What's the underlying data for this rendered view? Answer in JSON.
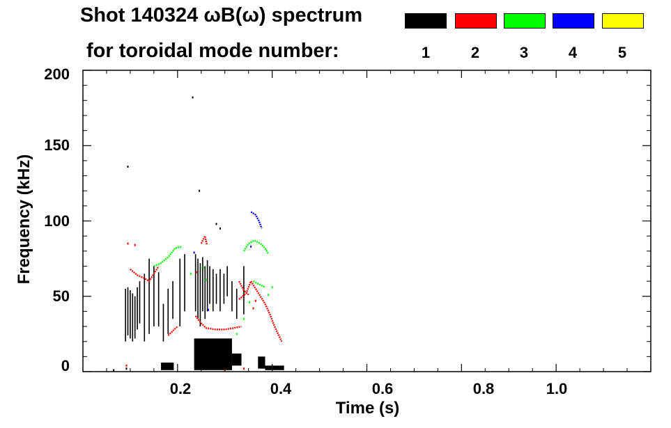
{
  "title": {
    "line1": "Shot 140324 ωB(ω) spectrum",
    "line2": "for toroidal mode number:"
  },
  "legend": [
    {
      "mode": "1",
      "color": "#000000"
    },
    {
      "mode": "2",
      "color": "#ff0000"
    },
    {
      "mode": "3",
      "color": "#00ff00"
    },
    {
      "mode": "4",
      "color": "#0000ff"
    },
    {
      "mode": "5",
      "color": "#ffff00"
    }
  ],
  "chart_data": {
    "type": "scatter",
    "title": "Shot 140324 ωB(ω) spectrum for toroidal mode number: 1 2 3 4 5",
    "xlabel": "Time (s)",
    "ylabel": "Frequency (kHz)",
    "xlim": [
      0.0,
      1.2
    ],
    "ylim": [
      0,
      200
    ],
    "x_ticks": [
      {
        "value": 0.2,
        "label": "0.2"
      },
      {
        "value": 0.4,
        "label": "0.4"
      },
      {
        "value": 0.6,
        "label": "0.6"
      },
      {
        "value": 0.8,
        "label": "0.8"
      },
      {
        "value": 1.0,
        "label": "1.0"
      }
    ],
    "y_ticks": [
      {
        "value": 0,
        "label": "0"
      },
      {
        "value": 50,
        "label": "50"
      },
      {
        "value": 100,
        "label": "100"
      },
      {
        "value": 150,
        "label": "150"
      },
      {
        "value": 200,
        "label": "200"
      }
    ],
    "series": [
      {
        "name": "n=1",
        "color": "#000000",
        "segments": [
          {
            "t": 0.09,
            "f": [
              20,
              55
            ]
          },
          {
            "t": 0.095,
            "f": [
              24,
              56
            ]
          },
          {
            "t": 0.1,
            "f": [
              22,
              54
            ]
          },
          {
            "t": 0.105,
            "f": [
              20,
              52
            ]
          },
          {
            "t": 0.11,
            "f": [
              22,
              50
            ]
          },
          {
            "t": 0.115,
            "f": [
              28,
              56
            ]
          },
          {
            "t": 0.12,
            "f": [
              32,
              60
            ]
          },
          {
            "t": 0.13,
            "f": [
              20,
              65
            ]
          },
          {
            "t": 0.14,
            "f": [
              25,
              75
            ]
          },
          {
            "t": 0.15,
            "f": [
              30,
              70
            ]
          },
          {
            "t": 0.16,
            "f": [
              30,
              66
            ]
          },
          {
            "t": 0.17,
            "f": [
              20,
              45
            ]
          },
          {
            "t": 0.18,
            "f": [
              25,
              55
            ]
          },
          {
            "t": 0.19,
            "f": [
              35,
              60
            ]
          },
          {
            "t": 0.205,
            "f": [
              30,
              75
            ]
          },
          {
            "t": 0.215,
            "f": [
              40,
              78
            ]
          },
          {
            "t": 0.238,
            "f": [
              40,
              78
            ]
          },
          {
            "t": 0.243,
            "f": [
              35,
              75
            ]
          },
          {
            "t": 0.248,
            "f": [
              30,
              72
            ]
          },
          {
            "t": 0.253,
            "f": [
              40,
              76
            ]
          },
          {
            "t": 0.258,
            "f": [
              35,
              70
            ]
          },
          {
            "t": 0.263,
            "f": [
              40,
              74
            ]
          },
          {
            "t": 0.268,
            "f": [
              45,
              70
            ]
          },
          {
            "t": 0.275,
            "f": [
              40,
              68
            ]
          },
          {
            "t": 0.282,
            "f": [
              45,
              65
            ]
          },
          {
            "t": 0.29,
            "f": [
              40,
              68
            ]
          },
          {
            "t": 0.298,
            "f": [
              45,
              65
            ]
          },
          {
            "t": 0.305,
            "f": [
              50,
              70
            ]
          },
          {
            "t": 0.315,
            "f": [
              40,
              60
            ]
          },
          {
            "t": 0.325,
            "f": [
              35,
              55
            ]
          },
          {
            "t": 0.34,
            "f": [
              38,
              70
            ]
          }
        ],
        "points": [
          {
            "t": 0.095,
            "f": 136
          },
          {
            "t": 0.232,
            "f": 182
          },
          {
            "t": 0.246,
            "f": 120
          },
          {
            "t": 0.065,
            "f": 1
          },
          {
            "t": 0.092,
            "f": 2
          },
          {
            "t": 0.282,
            "f": 98
          },
          {
            "t": 0.29,
            "f": 95
          }
        ],
        "blobs": [
          {
            "t0": 0.165,
            "t1": 0.192,
            "f0": 1,
            "f1": 6
          },
          {
            "t0": 0.235,
            "t1": 0.315,
            "f0": 1,
            "f1": 22
          },
          {
            "t0": 0.315,
            "t1": 0.335,
            "f0": 4,
            "f1": 12
          },
          {
            "t0": 0.37,
            "t1": 0.385,
            "f0": 2,
            "f1": 10
          },
          {
            "t0": 0.385,
            "t1": 0.425,
            "f0": 1,
            "f1": 4
          }
        ]
      },
      {
        "name": "n=2",
        "color": "#ff0000",
        "tracks": [
          {
            "points": [
              [
                0.1,
                68
              ],
              [
                0.115,
                64
              ],
              [
                0.13,
                62
              ],
              [
                0.14,
                60
              ],
              [
                0.15,
                65
              ],
              [
                0.16,
                70
              ]
            ]
          },
          {
            "points": [
              [
                0.18,
                24
              ],
              [
                0.19,
                27
              ],
              [
                0.2,
                30
              ]
            ]
          },
          {
            "points": [
              [
                0.238,
                37
              ],
              [
                0.25,
                32
              ],
              [
                0.26,
                29
              ],
              [
                0.28,
                28
              ],
              [
                0.3,
                28
              ],
              [
                0.32,
                29
              ],
              [
                0.335,
                30
              ]
            ]
          },
          {
            "points": [
              [
                0.33,
                48
              ],
              [
                0.345,
                52
              ],
              [
                0.355,
                60
              ],
              [
                0.365,
                55
              ],
              [
                0.375,
                50
              ],
              [
                0.385,
                45
              ],
              [
                0.395,
                38
              ],
              [
                0.405,
                30
              ],
              [
                0.42,
                20
              ]
            ]
          },
          {
            "points": [
              [
                0.25,
                85
              ],
              [
                0.258,
                90
              ],
              [
                0.262,
                84
              ]
            ]
          },
          {
            "points": [
              [
                0.33,
                60
              ],
              [
                0.34,
                54
              ],
              [
                0.35,
                51
              ]
            ]
          }
        ],
        "points": [
          {
            "t": 0.092,
            "f": 4
          },
          {
            "t": 0.095,
            "f": 85
          },
          {
            "t": 0.11,
            "f": 84
          },
          {
            "t": 0.24,
            "f": 66
          },
          {
            "t": 0.36,
            "f": 42
          },
          {
            "t": 0.365,
            "f": 47
          },
          {
            "t": 0.3,
            "f": 1
          },
          {
            "t": 0.34,
            "f": 2
          }
        ]
      },
      {
        "name": "n=3",
        "color": "#00ff00",
        "tracks": [
          {
            "points": [
              [
                0.15,
                70
              ],
              [
                0.165,
                72
              ],
              [
                0.18,
                76
              ],
              [
                0.195,
                82
              ],
              [
                0.21,
                83
              ]
            ]
          },
          {
            "points": [
              [
                0.34,
                80
              ],
              [
                0.35,
                85
              ],
              [
                0.362,
                87
              ],
              [
                0.375,
                85
              ],
              [
                0.385,
                82
              ],
              [
                0.392,
                78
              ]
            ]
          },
          {
            "points": [
              [
                0.36,
                60
              ],
              [
                0.372,
                58
              ],
              [
                0.385,
                56
              ]
            ]
          }
        ],
        "points": [
          {
            "t": 0.255,
            "f": 69
          },
          {
            "t": 0.228,
            "f": 65
          },
          {
            "t": 0.26,
            "f": 61
          },
          {
            "t": 0.325,
            "f": 25
          },
          {
            "t": 0.34,
            "f": 35
          },
          {
            "t": 0.352,
            "f": 46
          },
          {
            "t": 0.392,
            "f": 51
          },
          {
            "t": 0.4,
            "f": 56
          }
        ]
      },
      {
        "name": "n=4",
        "color": "#0000ff",
        "tracks": [
          {
            "points": [
              [
                0.355,
                106
              ],
              [
                0.365,
                104
              ],
              [
                0.372,
                100
              ],
              [
                0.378,
                95
              ]
            ]
          }
        ],
        "points": [
          {
            "t": 0.265,
            "f": 41
          },
          {
            "t": 0.235,
            "f": 79
          },
          {
            "t": 0.355,
            "f": 83
          }
        ]
      },
      {
        "name": "n=5",
        "color": "#ffff00",
        "points": []
      }
    ]
  }
}
